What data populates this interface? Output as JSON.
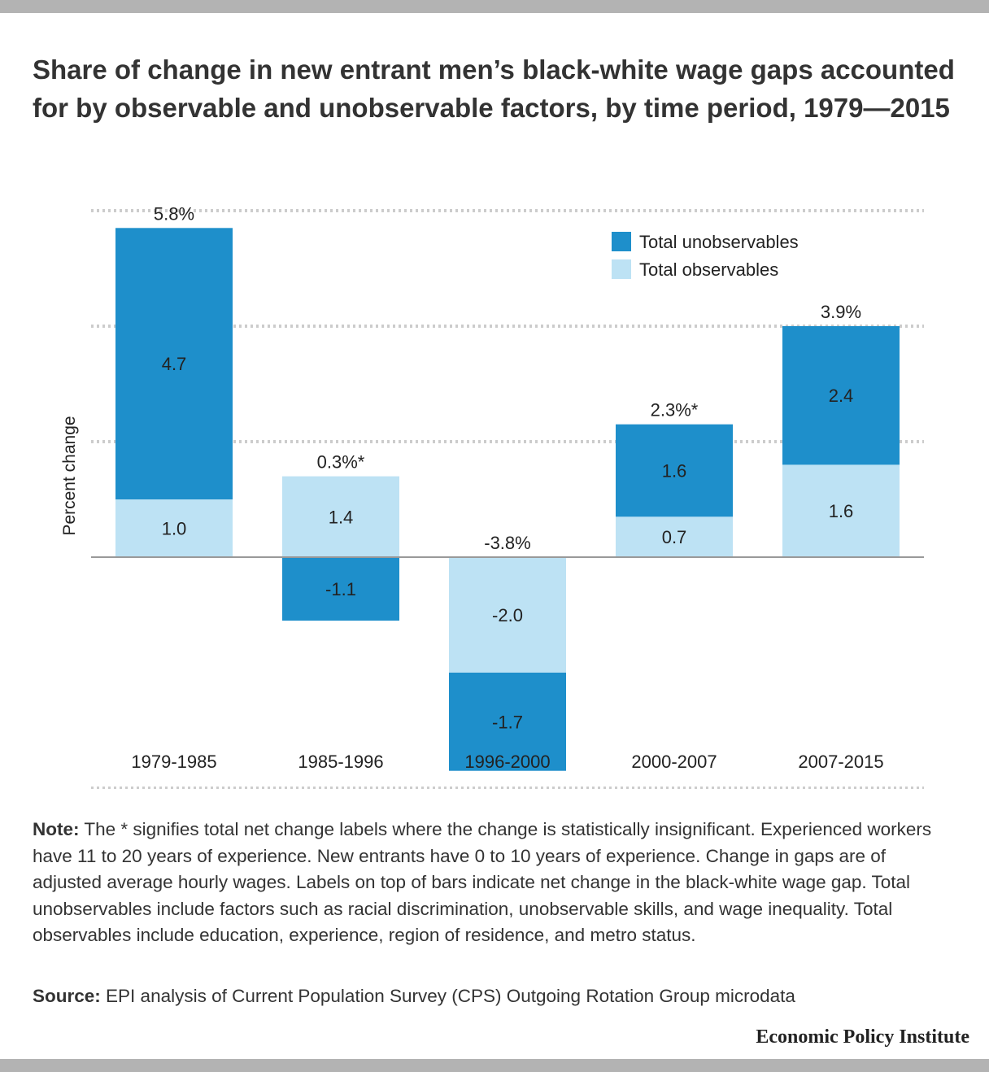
{
  "title": "Share of change in new entrant men’s black-white wage gaps accounted for by observable and unobservable factors, by time period, 1979—2015",
  "note": {
    "label": "Note:",
    "text": " The * signifies total net change labels where the change is statistically insignificant. Experienced workers have 11 to 20 years of experience. New entrants have 0 to 10 years of experience. Change in gaps are of adjusted average hourly wages. Labels on top of bars indicate net change in the black-white wage gap. Total unobservables include factors such as racial discrimination, unobservable skills, and wage inequality. Total observables include education, experience, region of residence, and metro status."
  },
  "source": {
    "label": "Source:",
    "text": " EPI analysis of Current Population Survey (CPS) Outgoing Rotation Group microdata"
  },
  "brand": "Economic Policy Institute",
  "colors": {
    "unobservables": "#1e8fcb",
    "observables": "#bde2f4",
    "grid": "#cccccc",
    "zero": "#999999"
  },
  "chart_data": {
    "type": "bar",
    "stacked": true,
    "ylabel": "Percent change",
    "categories": [
      "1979-1985",
      "1985-1996",
      "1996-2000",
      "2000-2007",
      "2007-2015"
    ],
    "series": [
      {
        "name": "Total observables",
        "values": [
          1.0,
          1.4,
          -2.0,
          0.7,
          1.6
        ]
      },
      {
        "name": "Total unobservables",
        "values": [
          4.7,
          -1.1,
          -1.7,
          1.6,
          2.4
        ]
      }
    ],
    "totals": [
      "5.8%",
      "0.3%*",
      "-3.8%",
      "2.3%*",
      "3.9%"
    ],
    "ylim": [
      -4,
      7
    ],
    "gridlines": [
      -4,
      0,
      2,
      4,
      6
    ],
    "grid": true,
    "legend": "top-right"
  }
}
